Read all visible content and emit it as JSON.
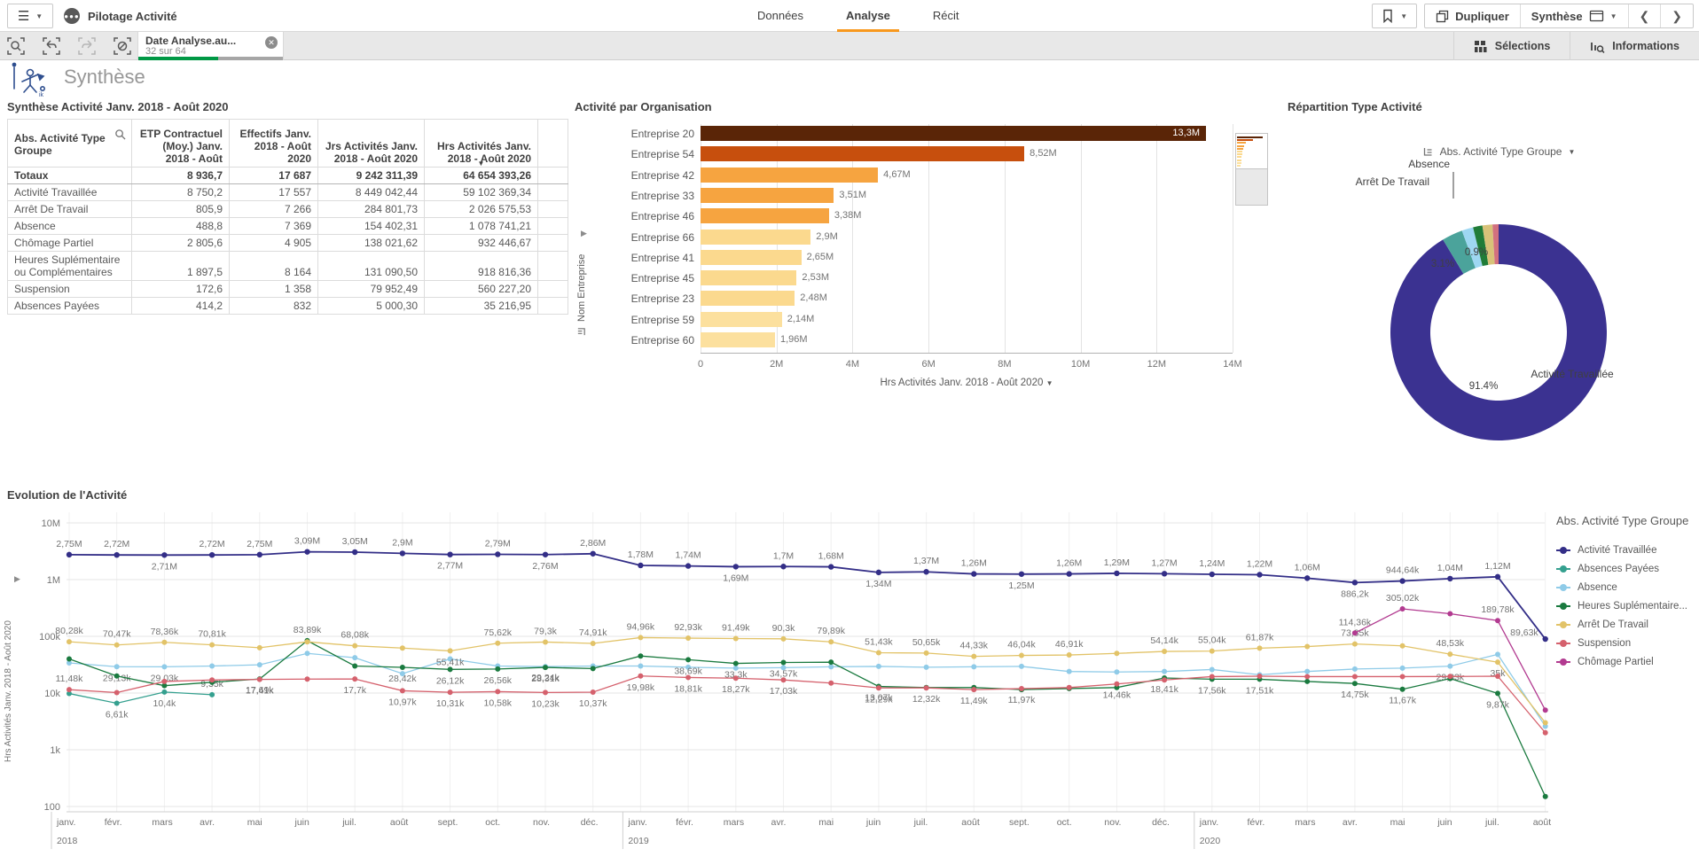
{
  "header": {
    "app_title": "Pilotage Activité",
    "tabs": [
      {
        "label": "Données",
        "active": false
      },
      {
        "label": "Analyse",
        "active": true
      },
      {
        "label": "Récit",
        "active": false
      }
    ],
    "duplicate_label": "Dupliquer",
    "sheet_selector_label": "Synthèse",
    "accent_color": "#f8981d",
    "icons": [
      "hamburger-icon",
      "app-badge-icon",
      "bookmark-icon",
      "duplicate-icon",
      "sheet-icon",
      "chevron-left-icon",
      "chevron-right-icon"
    ]
  },
  "toolbar": {
    "selection_chip": {
      "title": "Date Analyse.au...",
      "subtitle": "32 sur 64",
      "selected_ratio": 0.5,
      "green": "#009845"
    },
    "selections_label": "Sélections",
    "informations_label": "Informations",
    "icons": [
      "selection-search-icon",
      "step-back-icon",
      "step-forward-icon",
      "clear-selections-icon",
      "selections-grid-icon",
      "insights-icon"
    ]
  },
  "sheet": {
    "title": "Synthèse"
  },
  "table": {
    "title": "Synthèse Activité Janv. 2018 - Août 2020",
    "columns": [
      "Abs. Activité Type Groupe",
      "ETP Contractuel (Moy.) Janv. 2018 - Août",
      "Effectifs Janv. 2018 - Août 2020",
      "Jrs Activités Janv. 2018 - Août 2020",
      "Hrs Activités Janv. 2018 - Août 2020"
    ],
    "rows": [
      {
        "label": "Totaux",
        "values": [
          "8 936,7",
          "17 687",
          "9 242 311,39",
          "64 654 393,26"
        ],
        "total": true
      },
      {
        "label": "Activité Travaillée",
        "values": [
          "8 750,2",
          "17 557",
          "8 449 042,44",
          "59 102 369,34"
        ],
        "total": false
      },
      {
        "label": "Arrêt De Travail",
        "values": [
          "805,9",
          "7 266",
          "284 801,73",
          "2 026 575,53"
        ],
        "total": false
      },
      {
        "label": "Absence",
        "values": [
          "488,8",
          "7 369",
          "154 402,31",
          "1 078 741,21"
        ],
        "total": false
      },
      {
        "label": "Chômage Partiel",
        "values": [
          "2 805,6",
          "4 905",
          "138 021,62",
          "932 446,67"
        ],
        "total": false
      },
      {
        "label": "Heures Suplémentaire ou Complémentaires",
        "values": [
          "1 897,5",
          "8 164",
          "131 090,50",
          "918 816,36"
        ],
        "total": false
      },
      {
        "label": "Suspension",
        "values": [
          "172,6",
          "1 358",
          "79 952,49",
          "560 227,20"
        ],
        "total": false
      },
      {
        "label": "Absences Payées",
        "values": [
          "414,2",
          "832",
          "5 000,30",
          "35 216,95"
        ],
        "total": false
      }
    ]
  },
  "chart_data": [
    {
      "type": "bar",
      "title": "Activité par Organisation",
      "orientation": "horizontal",
      "categories": [
        "Entreprise 20",
        "Entreprise 54",
        "Entreprise 42",
        "Entreprise 33",
        "Entreprise 46",
        "Entreprise 66",
        "Entreprise 41",
        "Entreprise 45",
        "Entreprise 23",
        "Entreprise 59",
        "Entreprise 60"
      ],
      "values": [
        13300000,
        8520000,
        4670000,
        3510000,
        3380000,
        2900000,
        2650000,
        2530000,
        2480000,
        2140000,
        1960000
      ],
      "value_labels": [
        "13,3M",
        "8,52M",
        "4,67M",
        "3,51M",
        "3,38M",
        "2,9M",
        "2,65M",
        "2,53M",
        "2,48M",
        "2,14M",
        "1,96M"
      ],
      "colors": [
        "#5a2507",
        "#c74f0d",
        "#f6a440",
        "#f6a440",
        "#f6a440",
        "#fbd98e",
        "#fbd98e",
        "#fbd98e",
        "#fbd98e",
        "#fce09e",
        "#fce09e"
      ],
      "xlim": [
        0,
        14000000
      ],
      "xticks": [
        "0",
        "2M",
        "4M",
        "6M",
        "8M",
        "10M",
        "12M",
        "14M"
      ],
      "xlabel": "Hrs Activités Janv. 2018 - Août 2020",
      "ylabel": "Nom Entreprise",
      "grid": true
    },
    {
      "type": "pie",
      "title": "Répartition Type Activité",
      "dimension_selector": "Abs. Activité Type Groupe",
      "donut": true,
      "slices": [
        {
          "label": "Activité Travaillée",
          "pct": 91.4,
          "color": "#3b3291",
          "pct_label": "91.4%"
        },
        {
          "label": "Arrêt De Travail",
          "pct": 3.1,
          "color": "#4ba39b",
          "pct_label": "3.1%"
        },
        {
          "label": "Absence",
          "pct": 1.7,
          "color": "#9ed7f2",
          "pct_label": ""
        },
        {
          "label": "Heures Suplémentaire ou Complémentaires",
          "pct": 1.4,
          "color": "#207c38",
          "pct_label": ""
        },
        {
          "label": "Chômage Partiel",
          "pct": 1.5,
          "color": "#d8c279",
          "pct_label": ""
        },
        {
          "label": "Suspension",
          "pct": 0.9,
          "color": "#d2707f",
          "pct_label": "0.9%"
        }
      ],
      "callouts": [
        "Absence",
        "Arrêt De Travail"
      ],
      "shown_pcts": [
        "3.1%",
        "0.9%",
        "91.4%"
      ],
      "outer_label": "Activité Travaillée"
    },
    {
      "type": "line",
      "title": "Evolution de l'Activité",
      "ylabel": "Hrs Activités Janv. 2018 - Août 2020",
      "yscale": "log",
      "yticks": [
        "10M",
        "1M",
        "100k",
        "10k",
        "1k",
        "100"
      ],
      "legend_title": "Abs. Activité Type Groupe",
      "categories": [
        "janv.",
        "févr.",
        "mars",
        "avr.",
        "mai",
        "juin",
        "juil.",
        "août",
        "sept.",
        "oct.",
        "nov.",
        "déc.",
        "janv.",
        "févr.",
        "mars",
        "avr.",
        "mai",
        "juin",
        "juil.",
        "août",
        "sept.",
        "oct.",
        "nov.",
        "déc.",
        "janv.",
        "févr.",
        "mars",
        "avr.",
        "mai",
        "juin",
        "juil.",
        "août"
      ],
      "years": [
        {
          "index": 0,
          "label": "2018"
        },
        {
          "index": 12,
          "label": "2019"
        },
        {
          "index": 24,
          "label": "2020"
        }
      ],
      "series": [
        {
          "name": "Activité Travaillée",
          "color": "#332e87",
          "values": [
            2750000,
            2720000,
            2710000,
            2720000,
            2750000,
            3090000,
            3050000,
            2900000,
            2770000,
            2790000,
            2760000,
            2860000,
            1780000,
            1740000,
            1690000,
            1700000,
            1680000,
            1340000,
            1370000,
            1260000,
            1250000,
            1260000,
            1290000,
            1270000,
            1240000,
            1220000,
            1060000,
            886200,
            944640,
            1040000,
            1120000,
            89630
          ],
          "labels": [
            "2,75M",
            "2,72M",
            "2,71M",
            "2,72M",
            "2,75M",
            "3,09M",
            "3,05M",
            "2,9M",
            "2,77M",
            "2,79M",
            "2,76M",
            "2,86M",
            "1,78M",
            "1,74M",
            "1,69M",
            "1,7M",
            "1,68M",
            "1,34M",
            "1,37M",
            "1,26M",
            "1,25M",
            "1,26M",
            "1,29M",
            "1,27M",
            "1,24M",
            "1,22M",
            "1,06M",
            "886,2k",
            "944,64k",
            "1,04M",
            "1,12M",
            "89,63k"
          ],
          "label_below": [
            2,
            8,
            10,
            14,
            17,
            20,
            27
          ]
        },
        {
          "name": "Absences Payées",
          "color": "#35a08f",
          "values": [
            9800,
            6610,
            10400,
            9350,
            null,
            null,
            null,
            null,
            null,
            null,
            null,
            null,
            null,
            null,
            null,
            null,
            null,
            null,
            null,
            null,
            null,
            null,
            null,
            null,
            null,
            null,
            null,
            null,
            null,
            null,
            null,
            null
          ],
          "labels": [
            null,
            "6,61k",
            "10,4k",
            "9,35k",
            null,
            null,
            null,
            null,
            null,
            null,
            null,
            null,
            null,
            null,
            null,
            null,
            null,
            null,
            null,
            null,
            null,
            null,
            null,
            null,
            null,
            null,
            null,
            null,
            null,
            null,
            null,
            null
          ],
          "label_below": [
            1,
            2
          ]
        },
        {
          "name": "Absence",
          "color": "#8fcbe8",
          "values": [
            34000,
            29130,
            29030,
            30000,
            31500,
            50000,
            42000,
            22000,
            40000,
            30000,
            29240,
            30000,
            30000,
            28500,
            27500,
            28000,
            29000,
            29500,
            28500,
            29000,
            29500,
            24000,
            23500,
            24000,
            26000,
            21000,
            24000,
            26500,
            27500,
            29830,
            48000,
            2600
          ],
          "labels": [
            null,
            "29,13k",
            "29,03k",
            null,
            null,
            null,
            null,
            null,
            null,
            null,
            "29,24k",
            null,
            null,
            null,
            null,
            null,
            null,
            null,
            null,
            null,
            null,
            null,
            null,
            null,
            null,
            null,
            null,
            null,
            null,
            "29,83k",
            null,
            null
          ],
          "label_below": [
            1,
            2,
            10,
            29
          ]
        },
        {
          "name": "Heures Suplémentaire...",
          "color": "#1a7a3f",
          "values": [
            40000,
            20000,
            13500,
            15500,
            17690,
            83890,
            30000,
            28420,
            26120,
            26560,
            28310,
            27000,
            45000,
            38690,
            33300,
            34570,
            35000,
            13070,
            12500,
            12500,
            11500,
            12000,
            12500,
            18410,
            17560,
            17510,
            16000,
            14750,
            11670,
            18000,
            9870,
            150
          ],
          "labels": [
            null,
            null,
            null,
            null,
            "17,69k",
            "83,89k",
            null,
            "28,42k",
            "26,12k",
            "26,56k",
            "28,31k",
            null,
            null,
            "38,69k",
            "33,3k",
            "34,57k",
            null,
            "13,07k",
            null,
            null,
            null,
            null,
            null,
            "18,41k",
            "17,56k",
            "17,51k",
            null,
            "14,75k",
            "11,67k",
            null,
            "9,87k",
            null
          ],
          "label_below": [
            4,
            7,
            8,
            9,
            10,
            13,
            14,
            15,
            17,
            23,
            24,
            25,
            27,
            28,
            30
          ]
        },
        {
          "name": "Arrêt De Travail",
          "color": "#e2c368",
          "values": [
            80280,
            70470,
            78360,
            70810,
            63000,
            80000,
            68080,
            62000,
            55410,
            75620,
            79300,
            74910,
            94960,
            92930,
            91490,
            90300,
            79890,
            51430,
            50650,
            44330,
            46040,
            46910,
            50000,
            54140,
            55040,
            61870,
            66000,
            73350,
            68000,
            48530,
            35000,
            3000
          ],
          "labels": [
            "80,28k",
            "70,47k",
            "78,36k",
            "70,81k",
            null,
            null,
            "68,08k",
            null,
            "55,41k",
            "75,62k",
            "79,3k",
            "74,91k",
            "94,96k",
            "92,93k",
            "91,49k",
            "90,3k",
            "79,89k",
            "51,43k",
            "50,65k",
            "44,33k",
            "46,04k",
            "46,91k",
            null,
            "54,14k",
            "55,04k",
            "61,87k",
            null,
            "73,35k",
            null,
            "48,53k",
            "35k",
            null
          ],
          "label_below": [
            8,
            30
          ]
        },
        {
          "name": "Suspension",
          "color": "#d5616d",
          "values": [
            11480,
            10200,
            16000,
            17000,
            17410,
            17600,
            17700,
            10970,
            10310,
            10580,
            10230,
            10370,
            19980,
            18810,
            18270,
            17030,
            15000,
            12290,
            12320,
            11490,
            11970,
            12500,
            14460,
            17000,
            19500,
            19800,
            19500,
            19500,
            19500,
            19600,
            19800,
            2000
          ],
          "labels": [
            "11,48k",
            null,
            null,
            null,
            "17,41k",
            null,
            "17,7k",
            "10,97k",
            "10,31k",
            "10,58k",
            "10,23k",
            "10,37k",
            "19,98k",
            "18,81k",
            "18,27k",
            "17,03k",
            null,
            "12,29k",
            "12,32k",
            "11,49k",
            "11,97k",
            null,
            "14,46k",
            null,
            null,
            null,
            null,
            null,
            null,
            null,
            null,
            null
          ],
          "label_below": [
            4,
            6,
            7,
            8,
            9,
            10,
            11,
            12,
            13,
            14,
            15,
            17,
            18,
            19,
            20,
            22
          ]
        },
        {
          "name": "Chômage Partiel",
          "color": "#b23a90",
          "values": [
            null,
            null,
            null,
            null,
            null,
            null,
            null,
            null,
            null,
            null,
            null,
            null,
            null,
            null,
            null,
            null,
            null,
            null,
            null,
            null,
            null,
            null,
            null,
            null,
            null,
            null,
            null,
            114360,
            305020,
            250000,
            189780,
            5000
          ],
          "labels": [
            null,
            null,
            null,
            null,
            null,
            null,
            null,
            null,
            null,
            null,
            null,
            null,
            null,
            null,
            null,
            null,
            null,
            null,
            null,
            null,
            null,
            null,
            null,
            null,
            null,
            null,
            null,
            "114,36k",
            "305,02k",
            null,
            "189,78k",
            null
          ],
          "label_below": []
        }
      ]
    }
  ]
}
